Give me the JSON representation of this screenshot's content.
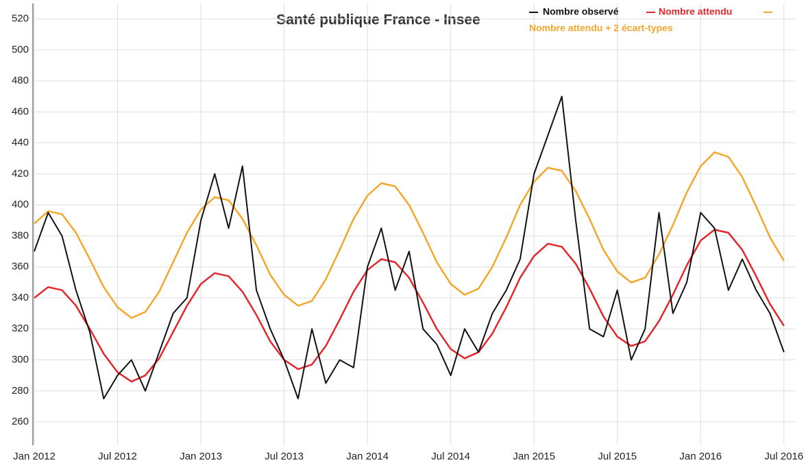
{
  "chart_data": {
    "type": "line",
    "title": "Santé publique France - Insee",
    "x": [
      0,
      1,
      2,
      3,
      4,
      5,
      6,
      7,
      8,
      9,
      10,
      11,
      12,
      13,
      14,
      15,
      16,
      17,
      18,
      19,
      20,
      21,
      22,
      23,
      24,
      25,
      26,
      27,
      28,
      29,
      30,
      31,
      32,
      33,
      34,
      35,
      36,
      37,
      38,
      39,
      40,
      41,
      42,
      43,
      44,
      45,
      46,
      47,
      48,
      49,
      50,
      51,
      52,
      53,
      54
    ],
    "xlim": [
      0,
      54.8
    ],
    "xticks": [
      {
        "value": 0,
        "label": "Jan 2012"
      },
      {
        "value": 6,
        "label": "Jul 2012"
      },
      {
        "value": 12,
        "label": "Jan 2013"
      },
      {
        "value": 18,
        "label": "Jul 2013"
      },
      {
        "value": 24,
        "label": "Jan 2014"
      },
      {
        "value": 30,
        "label": "Jul 2014"
      },
      {
        "value": 36,
        "label": "Jan 2015"
      },
      {
        "value": 42,
        "label": "Jul 2015"
      },
      {
        "value": 48,
        "label": "Jan 2016"
      },
      {
        "value": 54,
        "label": "Jul 2016"
      }
    ],
    "ylim": [
      245,
      530
    ],
    "yticks": [
      260,
      280,
      300,
      320,
      340,
      360,
      380,
      400,
      420,
      440,
      460,
      480,
      500,
      520
    ],
    "grid": true,
    "series": [
      {
        "name": "Nombre observé",
        "color": "#111111",
        "values": [
          370,
          395,
          380,
          345,
          318,
          275,
          290,
          300,
          280,
          305,
          330,
          340,
          390,
          420,
          385,
          425,
          345,
          320,
          300,
          275,
          320,
          285,
          300,
          295,
          360,
          385,
          345,
          370,
          320,
          310,
          290,
          320,
          305,
          330,
          345,
          365,
          420,
          445,
          470,
          390,
          320,
          315,
          345,
          300,
          320,
          395,
          330,
          350,
          395,
          385,
          345,
          365,
          345,
          330,
          305
        ]
      },
      {
        "name": "Nombre attendu",
        "color": "#e3262c",
        "values": [
          340,
          347,
          345,
          335,
          320,
          304,
          292,
          286,
          290,
          301,
          318,
          335,
          349,
          356,
          354,
          344,
          329,
          312,
          300,
          294,
          297,
          309,
          326,
          344,
          358,
          365,
          363,
          353,
          337,
          320,
          307,
          301,
          305,
          317,
          334,
          353,
          367,
          375,
          373,
          362,
          346,
          328,
          315,
          309,
          312,
          325,
          342,
          361,
          377,
          384,
          382,
          371,
          354,
          336,
          322
        ]
      },
      {
        "name": "Nombre attendu + 2 écart-types",
        "color": "#f2a72b",
        "values": [
          388,
          396,
          394,
          382,
          365,
          347,
          334,
          327,
          331,
          344,
          363,
          382,
          397,
          405,
          403,
          391,
          374,
          355,
          342,
          335,
          338,
          352,
          371,
          391,
          406,
          414,
          412,
          400,
          382,
          363,
          349,
          342,
          346,
          360,
          379,
          400,
          415,
          424,
          422,
          409,
          391,
          371,
          357,
          350,
          353,
          368,
          387,
          408,
          425,
          434,
          431,
          418,
          399,
          379,
          364
        ]
      }
    ]
  }
}
